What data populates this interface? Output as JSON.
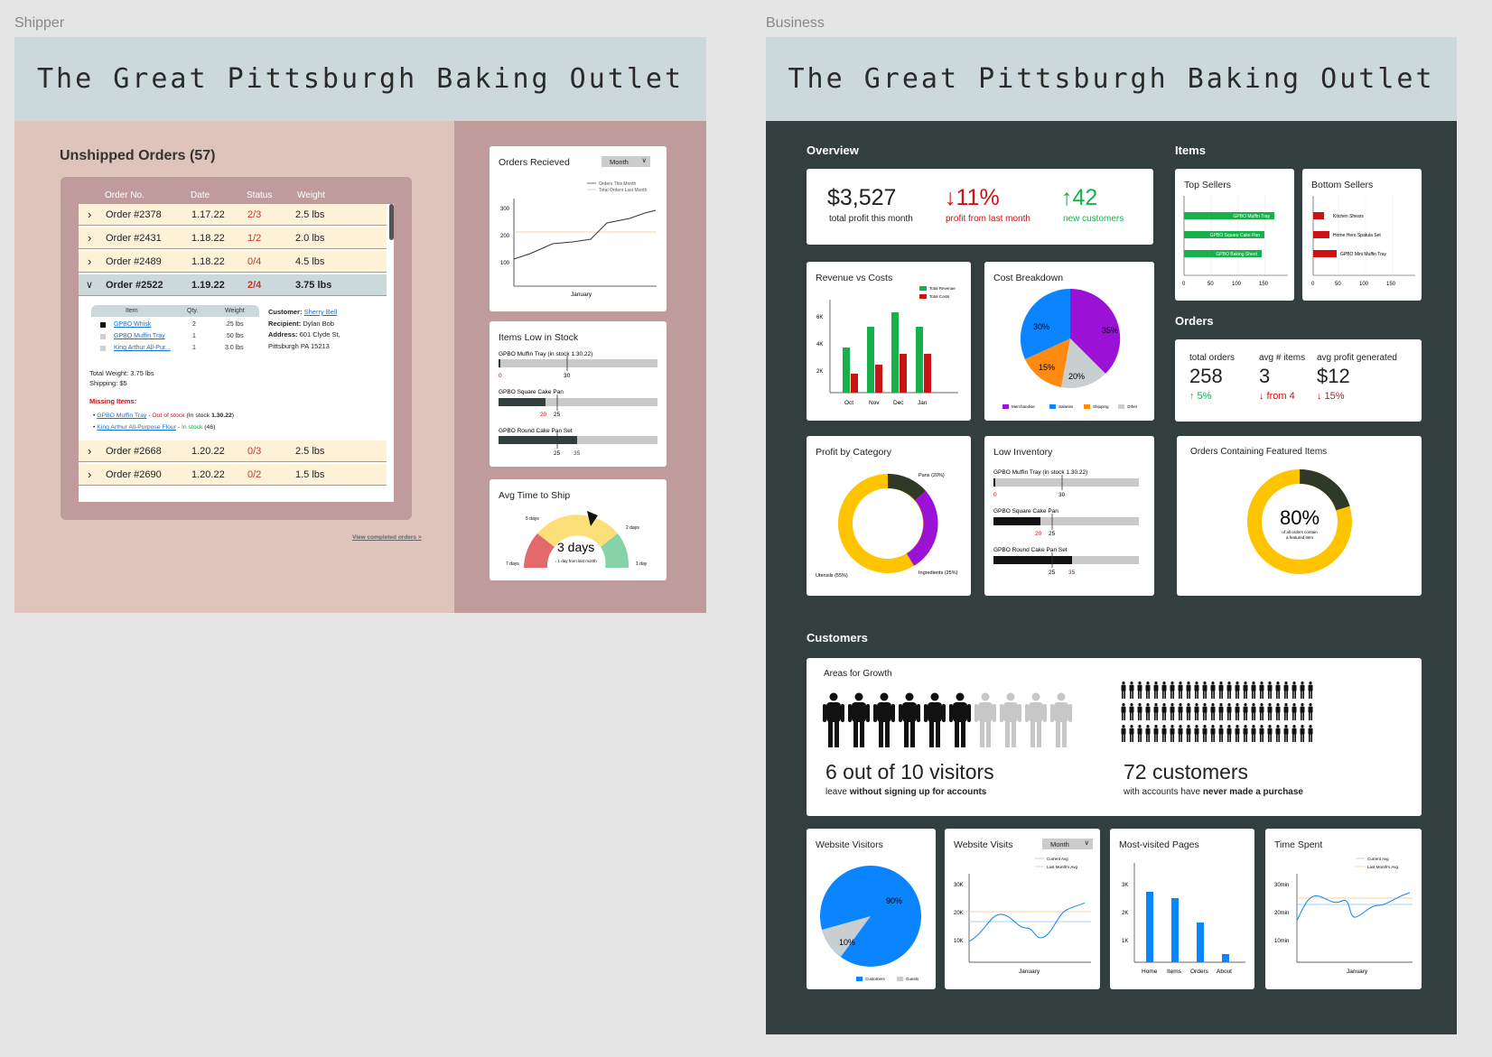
{
  "shipper": {
    "frame_label": "Shipper",
    "banner_title": "The Great Pittsburgh Baking Outlet",
    "unshipped_title": "Unshipped Orders (57)",
    "table_headers": [
      "Order No.",
      "Date",
      "Status",
      "Weight"
    ],
    "orders_top": [
      {
        "no": "Order #2378",
        "date": "1.17.22",
        "status": "2/3",
        "weight": "2.5 lbs"
      },
      {
        "no": "Order #2431",
        "date": "1.18.22",
        "status": "1/2",
        "weight": "2.0 lbs"
      },
      {
        "no": "Order #2489",
        "date": "1.18.22",
        "status": "0/4",
        "weight": "4.5 lbs"
      }
    ],
    "expanded_order": {
      "no": "Order #2522",
      "date": "1.19.22",
      "status": "2/4",
      "weight": "3.75 lbs",
      "item_headers": [
        "Item",
        "Qty.",
        "Weight"
      ],
      "items": [
        {
          "name": "GPBO Whisk",
          "qty": "2",
          "weight": ".25 lbs"
        },
        {
          "name": "GPBO Muffin Tray",
          "qty": "1",
          "weight": ".50 lbs"
        },
        {
          "name": "King Arthur All-Pur...",
          "qty": "1",
          "weight": "3.0 lbs"
        }
      ],
      "customer_label": "Customer:",
      "customer": "Sherry Bell",
      "recipient_label": "Recipient:",
      "recipient": "Dylan Bob",
      "address_label": "Address:",
      "address_line1": "601 Clyde St,",
      "address_line2": "Pittsburgh PA 15213",
      "total_weight": "Total Weight: 3.75 lbs",
      "shipping": "Shipping: $5",
      "missing_title": "Missing Items:",
      "missing": [
        {
          "name": "GPBO Muffin Tray",
          "sep": " - ",
          "status": "Out of stock",
          "note_pre": " (In stock ",
          "note_bold": "1.30.22",
          "note_post": ")"
        },
        {
          "name": "King Arthur All-Purpose Flour",
          "sep": " - ",
          "status": "In stock",
          "note_pre": " (46)",
          "note_bold": "",
          "note_post": ""
        }
      ]
    },
    "orders_bottom": [
      {
        "no": "Order #2668",
        "date": "1.20.22",
        "status": "0/3",
        "weight": "2.5 lbs"
      },
      {
        "no": "Order #2690",
        "date": "1.20.22",
        "status": "0/2",
        "weight": "1.5 lbs"
      }
    ],
    "view_completed": "View completed orders >",
    "orders_received": {
      "title": "Orders Recieved",
      "dropdown": "Month",
      "legend": [
        "Orders This Month",
        "Total Orders Last Month"
      ],
      "yticks": [
        "300",
        "200",
        "100"
      ],
      "xlabel": "January"
    },
    "low_stock": {
      "title": "Items Low in Stock",
      "items": [
        {
          "name": "GPBO Muffin Tray (in stock 1.30.22)",
          "current": "0",
          "threshold": "30"
        },
        {
          "name": "GPBO Square Cake Pan",
          "current": "20",
          "threshold": "25"
        },
        {
          "name": "GPBO Round Cake Pan Set",
          "current": "35",
          "threshold": "25"
        }
      ]
    },
    "avg_ship": {
      "title": "Avg Time to Ship",
      "value": "3 days",
      "sub": "↓ 1 day from last month",
      "labels": [
        "5 days",
        "2 days",
        "7 days",
        "1 day"
      ]
    }
  },
  "business": {
    "frame_label": "Business",
    "banner_title": "The Great Pittsburgh Baking Outlet",
    "sections": {
      "overview": "Overview",
      "items": "Items",
      "orders": "Orders",
      "customers": "Customers"
    },
    "overview": {
      "profit": "$3,527",
      "profit_label": "total profit this month",
      "change": "↓11%",
      "change_label": "profit from last month",
      "new_cust": "↑42",
      "new_cust_label": "new customers"
    },
    "top_sellers": {
      "title": "Top Sellers",
      "items": [
        "GPBO Muffin Tray",
        "GPBO Square Cake Pan",
        "GPBO Baking Sheet"
      ],
      "ticks": [
        "0",
        "50",
        "100",
        "150"
      ]
    },
    "bottom_sellers": {
      "title": "Bottom Sellers",
      "items": [
        "Kitchen Shears",
        "Home Hero Spatula Set",
        "GPBO Mini Muffin Tray"
      ],
      "ticks": [
        "0",
        "50",
        "100",
        "150"
      ]
    },
    "orders": {
      "total_label": "total orders",
      "total": "258",
      "total_change": "↑ 5%",
      "avg_items_label": "avg # items",
      "avg_items": "3",
      "avg_items_change": "↓ from 4",
      "avg_profit_label": "avg profit generated",
      "avg_profit": "$12",
      "avg_profit_change": "↓ 15%"
    },
    "revenue_costs": {
      "title": "Revenue vs Costs",
      "legend": [
        "Total Revenue",
        "Total Costs"
      ],
      "yticks": [
        "6K",
        "4K",
        "2K"
      ]
    },
    "cost_breakdown": {
      "title": "Cost Breakdown",
      "labels": [
        "35%",
        "30%",
        "15%",
        "20%"
      ],
      "legend": [
        "Merchandise",
        "Salaries",
        "Shipping",
        "Other"
      ]
    },
    "profit_category": {
      "title": "Profit by Category",
      "labels": [
        "Pans (20%)",
        "Ingredients (25%)",
        "Utensils (55%)"
      ]
    },
    "low_inventory": {
      "title": "Low Inventory",
      "items": [
        {
          "name": "GPBO Muffin Tray (in stock 1.30.22)",
          "current": "0",
          "threshold": "30"
        },
        {
          "name": "GPBO Square Cake Pan",
          "current": "20",
          "threshold": "25"
        },
        {
          "name": "GPBO Round Cake Pan Set",
          "current": "35",
          "threshold": "25"
        }
      ]
    },
    "featured": {
      "title": "Orders Containing Featured Items",
      "value": "80%",
      "sub1": "of all orders contain",
      "sub2": "a featured item"
    },
    "growth": {
      "title": "Areas for Growth",
      "stat1": "6 out of 10 visitors",
      "stat1_pre": "leave ",
      "stat1_bold": "without signing up for accounts",
      "stat2": "72 customers",
      "stat2_pre": "with accounts have ",
      "stat2_bold": "never made a purchase"
    },
    "website_visitors": {
      "title": "Website Visitors",
      "labels": [
        "90%",
        "10%"
      ],
      "legend": [
        "Customers",
        "Guests"
      ]
    },
    "website_visits": {
      "title": "Website Visits",
      "dropdown": "Month",
      "legend": [
        "Current Avg",
        "Last Month's Avg"
      ],
      "yticks": [
        "30K",
        "20K",
        "10K"
      ],
      "xlabel": "January"
    },
    "most_visited": {
      "title": "Most-visited Pages",
      "yticks": [
        "3K",
        "2K",
        "1K"
      ],
      "categories": [
        "Home",
        "Items",
        "Orders",
        "About"
      ]
    },
    "time_spent": {
      "title": "Time Spent",
      "legend": [
        "Current Avg",
        "Last Month's Avg"
      ],
      "yticks": [
        "30min",
        "20min",
        "10min"
      ],
      "xlabel": "January"
    }
  },
  "chart_data": [
    {
      "type": "line",
      "title": "Orders Recieved",
      "xlabel": "January",
      "ylim": [
        0,
        350
      ],
      "series": [
        {
          "name": "Orders This Month",
          "x": [
            1,
            4,
            8,
            12,
            16,
            20,
            24,
            28,
            31
          ],
          "values": [
            100,
            120,
            150,
            185,
            195,
            220,
            255,
            265,
            280
          ]
        },
        {
          "name": "Total Orders Last Month",
          "values": [
            230
          ]
        }
      ]
    },
    {
      "type": "bar",
      "title": "Revenue vs Costs",
      "categories": [
        "Oct",
        "Nov",
        "Dec",
        "Jan"
      ],
      "series": [
        {
          "name": "Total Revenue",
          "values": [
            3500,
            5000,
            6000,
            5000
          ]
        },
        {
          "name": "Total Costs",
          "values": [
            1500,
            2200,
            3000,
            3000
          ]
        }
      ],
      "ylim": [
        0,
        7000
      ]
    },
    {
      "type": "pie",
      "title": "Cost Breakdown",
      "categories": [
        "Merchandise",
        "Salaries",
        "Shipping",
        "Other"
      ],
      "values": [
        35,
        30,
        15,
        20
      ]
    },
    {
      "type": "pie",
      "title": "Profit by Category",
      "categories": [
        "Pans",
        "Ingredients",
        "Utensils"
      ],
      "values": [
        20,
        25,
        55
      ]
    },
    {
      "type": "bar",
      "title": "Top Sellers",
      "categories": [
        "GPBO Muffin Tray",
        "GPBO Square Cake Pan",
        "GPBO Baking Sheet"
      ],
      "values": [
        175,
        155,
        150
      ]
    },
    {
      "type": "bar",
      "title": "Bottom Sellers",
      "categories": [
        "Kitchen Shears",
        "Home Hero Spatula Set",
        "GPBO Mini Muffin Tray"
      ],
      "values": [
        20,
        30,
        45
      ]
    },
    {
      "type": "pie",
      "title": "Orders Containing Featured Items",
      "categories": [
        "featured",
        "other"
      ],
      "values": [
        80,
        20
      ]
    },
    {
      "type": "pie",
      "title": "Website Visitors",
      "categories": [
        "Customers",
        "Guests"
      ],
      "values": [
        90,
        10
      ]
    },
    {
      "type": "bar",
      "title": "Most-visited Pages",
      "categories": [
        "Home",
        "Items",
        "Orders",
        "About"
      ],
      "values": [
        2700,
        2400,
        1500,
        300
      ],
      "ylim": [
        0,
        3500
      ]
    }
  ],
  "colors": {
    "green": "#16b14b",
    "red": "#cc1313",
    "purple": "#9b12d6",
    "blue": "#0a84ff",
    "orange": "#ff8a12",
    "gray": "#c9cfd1",
    "yellow": "#ffc400",
    "dark": "#2e3a27",
    "darkbg": "#333f3f"
  }
}
